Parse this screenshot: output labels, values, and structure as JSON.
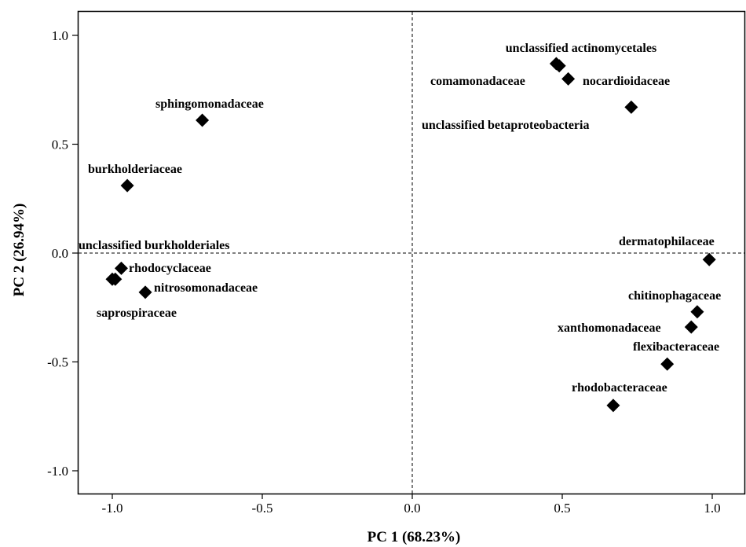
{
  "chart_data": {
    "type": "scatter",
    "title": "",
    "xlabel": "PC 1 (68.23%)",
    "ylabel": "PC 2 (26.94%)",
    "xlim": [
      -1.1,
      1.1
    ],
    "ylim": [
      -1.1,
      1.1
    ],
    "x_ticks": [
      "-1.0",
      "-0.5",
      "0.0",
      "0.5",
      "1.0"
    ],
    "y_ticks": [
      "1.0",
      "0.5",
      "0.0",
      "-0.5",
      "-1.0"
    ],
    "reference_lines": {
      "x": 0,
      "y": 0,
      "style": "dashed"
    },
    "grid": false,
    "marker": "diamond",
    "points": [
      {
        "label": "unclassified actinomycetales",
        "x": 0.49,
        "y": 0.86
      },
      {
        "label": "comamonadaceae",
        "x": 0.48,
        "y": 0.87
      },
      {
        "label": "nocardioidaceae",
        "x": 0.52,
        "y": 0.8
      },
      {
        "label": "unclassified betaproteobacteria",
        "x": 0.73,
        "y": 0.67
      },
      {
        "label": "sphingomonadaceae",
        "x": -0.7,
        "y": 0.61
      },
      {
        "label": "burkholderiaceae",
        "x": -0.95,
        "y": 0.31
      },
      {
        "label": "unclassified burkholderiales",
        "x": -0.99,
        "y": -0.12
      },
      {
        "label": "rhodocyclaceae",
        "x": -0.97,
        "y": -0.07
      },
      {
        "label": "nitrosomonadaceae",
        "x": -0.89,
        "y": -0.18
      },
      {
        "label": "saprospiraceae",
        "x": -1.0,
        "y": -0.12
      },
      {
        "label": "dermatophilaceae",
        "x": 0.99,
        "y": -0.03
      },
      {
        "label": "chitinophagaceae",
        "x": 0.95,
        "y": -0.27
      },
      {
        "label": "xanthomonadaceae",
        "x": 0.93,
        "y": -0.34
      },
      {
        "label": "flexibacteraceae",
        "x": 0.85,
        "y": -0.51
      },
      {
        "label": "rhodobacteraceae",
        "x": 0.67,
        "y": -0.7
      }
    ]
  }
}
